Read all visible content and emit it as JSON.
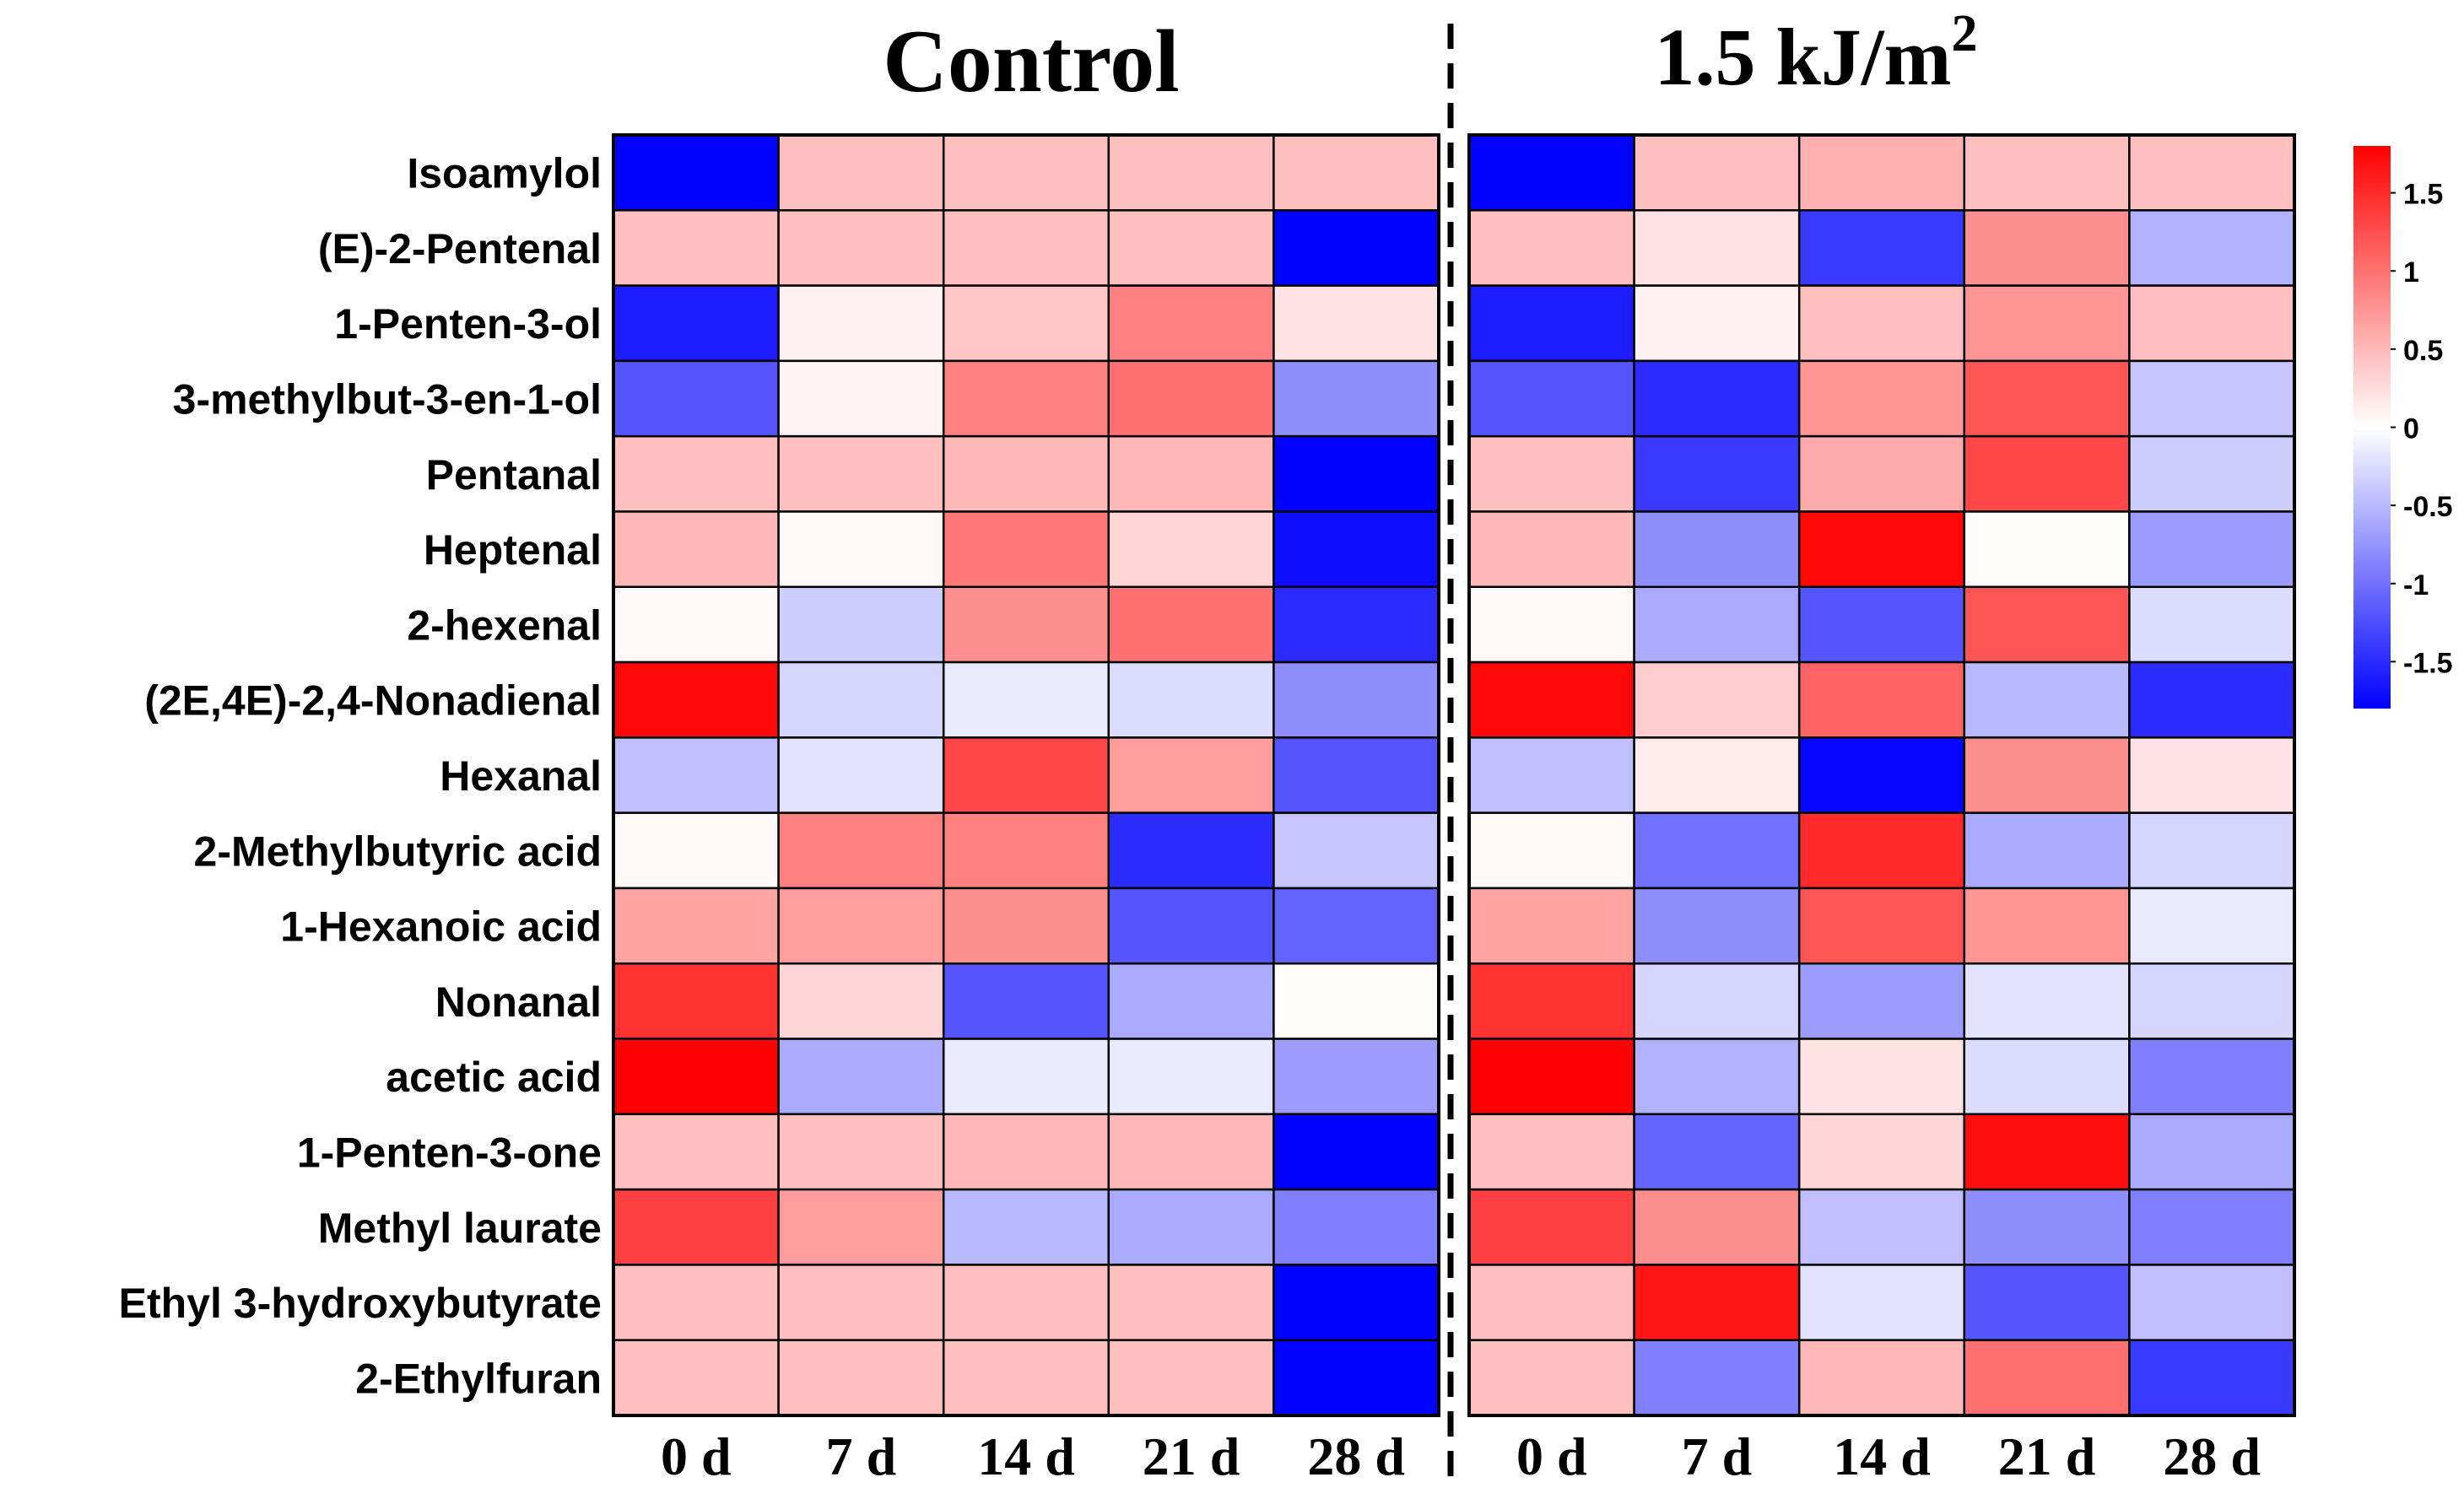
{
  "chart_data": {
    "type": "heatmap",
    "colors": {
      "low": "#0000ff",
      "mid": "#ffffff",
      "high": "#ff0000",
      "grid": "#000000"
    },
    "color_range": [
      -1.8,
      1.8
    ],
    "legend": {
      "placement": "right",
      "ticks": [
        {
          "value": 1.5,
          "label": "1.5"
        },
        {
          "value": 1,
          "label": "1"
        },
        {
          "value": 0.5,
          "label": "0.5"
        },
        {
          "value": 0,
          "label": "0"
        },
        {
          "value": -0.5,
          "label": "-0.5"
        },
        {
          "value": -1,
          "label": "-1"
        },
        {
          "value": -1.5,
          "label": "-1.5"
        }
      ]
    },
    "rows": [
      "Isoamylol",
      "(E)-2-Pentenal",
      "1-Penten-3-ol",
      "3-methylbut-3-en-1-ol",
      "Pentanal",
      "Heptenal",
      "2-hexenal",
      "(2E,4E)-2,4-Nonadienal",
      "Hexanal",
      "2-Methylbutyric acid",
      "1-Hexanoic acid",
      "Nonanal",
      "acetic acid",
      "1-Penten-3-one",
      "Methyl laurate",
      "Ethyl 3-hydroxybutyrate",
      "2-Ethylfuran"
    ],
    "panels": [
      {
        "title": "Control",
        "title_superscript": "",
        "columns": [
          "0 d",
          "7 d",
          "14 d",
          "21 d",
          "28 d"
        ],
        "values": [
          [
            -1.79,
            0.45,
            0.45,
            0.45,
            0.45
          ],
          [
            0.45,
            0.45,
            0.45,
            0.45,
            -1.79
          ],
          [
            -1.6,
            0.1,
            0.4,
            0.9,
            0.2
          ],
          [
            -1.2,
            0.08,
            0.9,
            1.0,
            -0.8
          ],
          [
            0.45,
            0.45,
            0.5,
            0.5,
            -1.79
          ],
          [
            0.5,
            0.05,
            0.95,
            0.3,
            -1.7
          ],
          [
            0.05,
            -0.35,
            0.8,
            1.0,
            -1.5
          ],
          [
            1.75,
            -0.3,
            -0.15,
            -0.25,
            -0.8
          ],
          [
            -0.45,
            -0.2,
            1.3,
            0.7,
            -1.2
          ],
          [
            0.05,
            0.9,
            0.9,
            -1.5,
            -0.4
          ],
          [
            0.65,
            0.7,
            0.8,
            -1.2,
            -1.1
          ],
          [
            1.45,
            0.3,
            -1.2,
            -0.6,
            0.02
          ],
          [
            1.8,
            -0.6,
            -0.15,
            -0.15,
            -0.7
          ],
          [
            0.45,
            0.45,
            0.5,
            0.5,
            -1.79
          ],
          [
            1.35,
            0.7,
            -0.5,
            -0.6,
            -0.9
          ],
          [
            0.45,
            0.45,
            0.45,
            0.45,
            -1.79
          ],
          [
            0.45,
            0.45,
            0.45,
            0.45,
            -1.79
          ]
        ]
      },
      {
        "title": "1.5 kJ/m",
        "title_superscript": "2",
        "columns": [
          "0 d",
          "7 d",
          "14 d",
          "21 d",
          "28 d"
        ],
        "values": [
          [
            -1.79,
            0.45,
            0.55,
            0.45,
            0.45
          ],
          [
            0.45,
            0.2,
            -1.4,
            0.8,
            -0.55
          ],
          [
            -1.6,
            0.1,
            0.45,
            0.75,
            0.45
          ],
          [
            -1.2,
            -1.5,
            0.75,
            1.2,
            -0.4
          ],
          [
            0.45,
            -1.4,
            0.6,
            1.3,
            -0.35
          ],
          [
            0.5,
            -0.8,
            1.75,
            0.02,
            -0.7
          ],
          [
            0.05,
            -0.6,
            -1.2,
            1.2,
            -0.25
          ],
          [
            1.75,
            0.35,
            1.1,
            -0.5,
            -1.5
          ],
          [
            -0.45,
            0.15,
            -1.75,
            0.8,
            0.2
          ],
          [
            0.05,
            -1.0,
            1.5,
            -0.6,
            -0.3
          ],
          [
            0.65,
            -0.8,
            1.2,
            0.75,
            -0.15
          ],
          [
            1.45,
            -0.3,
            -0.7,
            -0.2,
            -0.3
          ],
          [
            1.8,
            -0.55,
            0.2,
            -0.25,
            -0.9
          ],
          [
            0.45,
            -1.1,
            0.3,
            1.7,
            -0.6
          ],
          [
            1.35,
            0.8,
            -0.45,
            -0.8,
            -0.9
          ],
          [
            0.45,
            1.65,
            -0.2,
            -1.2,
            -0.45
          ],
          [
            0.45,
            -0.9,
            0.5,
            1.0,
            -1.4
          ]
        ]
      }
    ]
  }
}
